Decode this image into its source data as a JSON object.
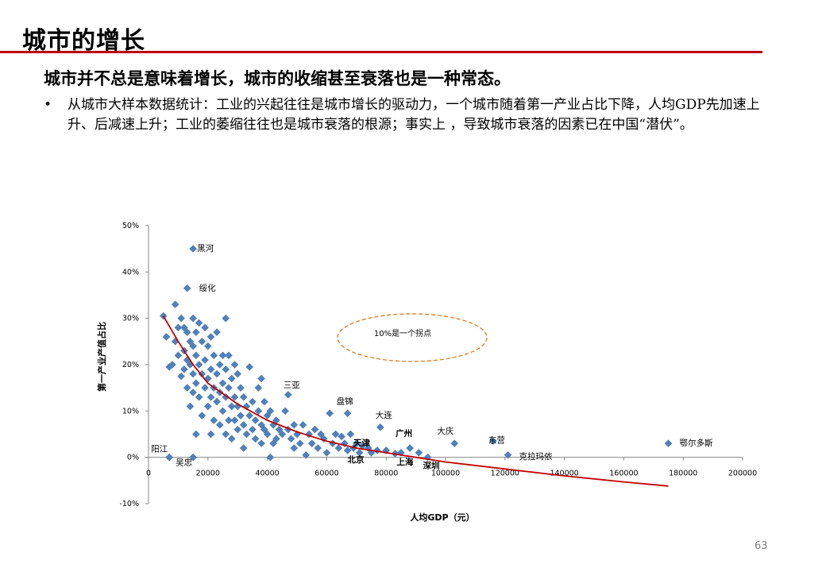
{
  "slide": {
    "title": "城市的增长",
    "subtitle": "城市并不总是意味着增长，城市的收缩甚至衰落也是一种常态。",
    "bullet_marker": "•",
    "bullet": "从城市大样本数据统计：工业的兴起往往是城市增长的驱动力，一个城市随着第一产业占比下降，人均GDP先加速上升、后减速上升；工业的萎缩往往也是城市衰落的根源；事实上 ，导致城市衰落的因素已在中国“潜伏”。",
    "page_number": "63"
  },
  "colors": {
    "accent_red": "#c00000",
    "point": "#4f81bd",
    "trend": "#c00000",
    "ellipse": "#e46c0a"
  },
  "chart_data": {
    "type": "scatter",
    "title": "",
    "xlabel": "人均GDP（元）",
    "ylabel": "第一产业产值占比",
    "xlim": [
      0,
      200000
    ],
    "ylim": [
      -10,
      50
    ],
    "xticks": [
      "0",
      "20000",
      "40000",
      "60000",
      "80000",
      "100000",
      "120000",
      "140000",
      "160000",
      "180000",
      "200000"
    ],
    "yticks": [
      "-10%",
      "0%",
      "10%",
      "20%",
      "30%",
      "40%",
      "50%"
    ],
    "grid": false,
    "annotation": "10%是一个拐点",
    "labeled_points": [
      {
        "name": "黑河",
        "x": 15000,
        "y": 45
      },
      {
        "name": "绥化",
        "x": 13000,
        "y": 36.5
      },
      {
        "name": "三亚",
        "x": 47000,
        "y": 13.5
      },
      {
        "name": "盘锦",
        "x": 67000,
        "y": 9.5
      },
      {
        "name": "大连",
        "x": 78000,
        "y": 6.5
      },
      {
        "name": "大庆",
        "x": 103000,
        "y": 3
      },
      {
        "name": "东营",
        "x": 116000,
        "y": 3.5
      },
      {
        "name": "鄂尔多斯",
        "x": 175000,
        "y": 3
      },
      {
        "name": "克拉玛依",
        "x": 121000,
        "y": 0.5
      },
      {
        "name": "阳江",
        "x": 7000,
        "y": 0
      },
      {
        "name": "吴忠",
        "x": 15000,
        "y": 0
      },
      {
        "name": "天津",
        "x": 77000,
        "y": 1.5
      },
      {
        "name": "广州",
        "x": 88000,
        "y": 2
      },
      {
        "name": "北京",
        "x": 75000,
        "y": 1
      },
      {
        "name": "上海",
        "x": 83000,
        "y": 0.8
      },
      {
        "name": "深圳",
        "x": 94000,
        "y": 0
      }
    ],
    "points": [
      [
        5000,
        30.5
      ],
      [
        6000,
        26
      ],
      [
        7000,
        19.5
      ],
      [
        8000,
        20
      ],
      [
        9000,
        33
      ],
      [
        9000,
        25
      ],
      [
        10000,
        28
      ],
      [
        10000,
        22
      ],
      [
        11000,
        30
      ],
      [
        11000,
        17.5
      ],
      [
        12000,
        28
      ],
      [
        12000,
        23
      ],
      [
        12000,
        19
      ],
      [
        13000,
        27
      ],
      [
        13000,
        21
      ],
      [
        13000,
        15
      ],
      [
        14000,
        25
      ],
      [
        14000,
        20
      ],
      [
        14000,
        11
      ],
      [
        15000,
        30
      ],
      [
        15000,
        24
      ],
      [
        15000,
        18
      ],
      [
        15000,
        14
      ],
      [
        16000,
        27
      ],
      [
        16000,
        22
      ],
      [
        16000,
        16
      ],
      [
        16000,
        5
      ],
      [
        17000,
        29
      ],
      [
        17000,
        20
      ],
      [
        17000,
        13
      ],
      [
        18000,
        25
      ],
      [
        18000,
        18
      ],
      [
        18000,
        9
      ],
      [
        19000,
        28
      ],
      [
        19000,
        21
      ],
      [
        19000,
        15
      ],
      [
        20000,
        24
      ],
      [
        20000,
        17
      ],
      [
        20000,
        11
      ],
      [
        21000,
        26
      ],
      [
        21000,
        19
      ],
      [
        21000,
        13
      ],
      [
        21000,
        5
      ],
      [
        22000,
        22
      ],
      [
        22000,
        15
      ],
      [
        22000,
        8
      ],
      [
        23000,
        27
      ],
      [
        23000,
        18
      ],
      [
        23000,
        12
      ],
      [
        24000,
        20
      ],
      [
        24000,
        14
      ],
      [
        24000,
        7
      ],
      [
        25000,
        22
      ],
      [
        25000,
        16
      ],
      [
        25000,
        10
      ],
      [
        26000,
        30
      ],
      [
        26000,
        19
      ],
      [
        26000,
        13
      ],
      [
        26000,
        5
      ],
      [
        27000,
        22
      ],
      [
        27000,
        15
      ],
      [
        27000,
        8
      ],
      [
        28000,
        17
      ],
      [
        28000,
        11
      ],
      [
        28000,
        4
      ],
      [
        29000,
        20
      ],
      [
        29000,
        13
      ],
      [
        29000,
        8
      ],
      [
        30000,
        18
      ],
      [
        30000,
        11
      ],
      [
        30000,
        6
      ],
      [
        31000,
        15
      ],
      [
        31000,
        9
      ],
      [
        32000,
        13
      ],
      [
        32000,
        7
      ],
      [
        32000,
        2
      ],
      [
        33000,
        11
      ],
      [
        33000,
        5
      ],
      [
        34000,
        19.5
      ],
      [
        34000,
        9
      ],
      [
        35000,
        12
      ],
      [
        35000,
        6
      ],
      [
        36000,
        8
      ],
      [
        36000,
        4
      ],
      [
        37000,
        15
      ],
      [
        37000,
        10
      ],
      [
        38000,
        17
      ],
      [
        38000,
        7
      ],
      [
        38000,
        3
      ],
      [
        39000,
        12
      ],
      [
        39000,
        6
      ],
      [
        40000,
        9
      ],
      [
        40000,
        5
      ],
      [
        41000,
        10
      ],
      [
        41000,
        0
      ],
      [
        42000,
        7
      ],
      [
        42000,
        3
      ],
      [
        43000,
        8
      ],
      [
        43000,
        4
      ],
      [
        44000,
        6
      ],
      [
        45000,
        5
      ],
      [
        46000,
        10
      ],
      [
        47000,
        6
      ],
      [
        48000,
        4
      ],
      [
        49000,
        7
      ],
      [
        49000,
        2
      ],
      [
        50000,
        5
      ],
      [
        51000,
        3
      ],
      [
        52000,
        7
      ],
      [
        53000,
        0.5
      ],
      [
        54000,
        5
      ],
      [
        55000,
        3
      ],
      [
        56000,
        6
      ],
      [
        57000,
        2
      ],
      [
        58000,
        5
      ],
      [
        59000,
        4
      ],
      [
        60000,
        1
      ],
      [
        61000,
        9.5
      ],
      [
        62000,
        3
      ],
      [
        63000,
        5
      ],
      [
        64000,
        2
      ],
      [
        65000,
        4.5
      ],
      [
        66000,
        3
      ],
      [
        67000,
        1.5
      ],
      [
        68000,
        5
      ],
      [
        69000,
        2
      ],
      [
        70000,
        3
      ],
      [
        71000,
        1
      ],
      [
        72000,
        2.5
      ],
      [
        74000,
        2
      ],
      [
        80000,
        1.5
      ],
      [
        85000,
        1
      ],
      [
        91000,
        1
      ],
      [
        7000,
        0
      ],
      [
        15000,
        0
      ]
    ],
    "trendline": [
      [
        5000,
        30.5
      ],
      [
        10000,
        25
      ],
      [
        15000,
        20
      ],
      [
        20000,
        16
      ],
      [
        30000,
        11.5
      ],
      [
        40000,
        8
      ],
      [
        50000,
        5.5
      ],
      [
        60000,
        3.5
      ],
      [
        70000,
        2
      ],
      [
        80000,
        1
      ],
      [
        90000,
        0
      ],
      [
        100000,
        -1
      ],
      [
        120000,
        -2.5
      ],
      [
        140000,
        -4
      ],
      [
        160000,
        -5.3
      ],
      [
        175000,
        -6.2
      ]
    ]
  }
}
